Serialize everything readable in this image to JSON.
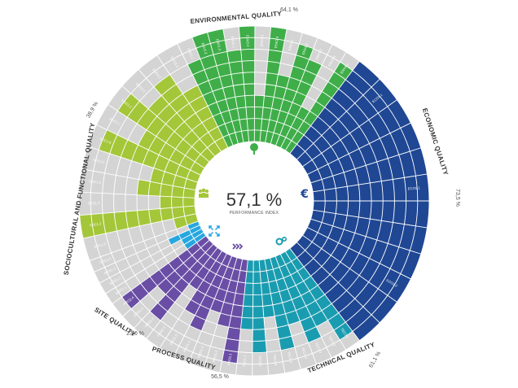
{
  "chart_data": {
    "type": "radial-bar",
    "center": {
      "value": "57,1 %",
      "caption": "PERFORMANCE INDEX"
    },
    "levels": 10,
    "categories": [
      {
        "name": "ENVIRONMENTAL QUALITY",
        "percent": "64,1 %",
        "color": "#3fae49",
        "icon": "tree-icon",
        "sectors": [
          {
            "label": "ENV1.1",
            "value": 8
          },
          {
            "label": "ENV1.2",
            "value": 10
          },
          {
            "label": "ENV1.3",
            "value": 10
          },
          {
            "label": "ENV2.1",
            "value": 8
          },
          {
            "label": "ENV2.2",
            "value": 10
          },
          {
            "label": "ENV2.3",
            "value": 4
          },
          {
            "label": "ENV2.4",
            "value": 10
          },
          {
            "label": "ENV3.1",
            "value": 6
          },
          {
            "label": "ENV3.2",
            "value": 9
          },
          {
            "label": "ENV3.3",
            "value": 8
          },
          {
            "label": "ENV3.4",
            "value": 4
          },
          {
            "label": "ENV4.1",
            "value": 9
          }
        ]
      },
      {
        "name": "ECONOMIC QUALITY",
        "percent": "73,5 %",
        "color": "#1f4793",
        "icon": "euro-icon",
        "sectors": [
          {
            "label": "",
            "value": 10
          },
          {
            "label": "ECO1.1",
            "value": 10
          },
          {
            "label": "",
            "value": 10
          },
          {
            "label": "",
            "value": 10
          },
          {
            "label": "",
            "value": 10
          },
          {
            "label": "ECO2.1",
            "value": 10
          },
          {
            "label": "",
            "value": 10
          },
          {
            "label": "",
            "value": 10
          },
          {
            "label": "",
            "value": 10
          },
          {
            "label": "ECO2.2",
            "value": 10
          },
          {
            "label": "",
            "value": 10
          },
          {
            "label": "",
            "value": 10
          }
        ]
      },
      {
        "name": "TECHNICAL QUALITY",
        "percent": "61,1 %",
        "color": "#1a9cb0",
        "icon": "gears-icon",
        "sectors": [
          {
            "label": "TEC1.1",
            "value": 9
          },
          {
            "label": "TEC1.2",
            "value": 7
          },
          {
            "label": "TEC1.3",
            "value": 8
          },
          {
            "label": "TEC1.4",
            "value": 6
          },
          {
            "label": "TEC1.5",
            "value": 8
          },
          {
            "label": "TEC1.6",
            "value": 5
          },
          {
            "label": "TEC3.1",
            "value": 8
          },
          {
            "label": "TEC1.1",
            "value": 6
          }
        ]
      },
      {
        "name": "PROCESS QUALITY",
        "percent": "56,5 %",
        "color": "#6a4ea5",
        "icon": "arrows-icon",
        "sectors": [
          {
            "label": "PRO1.1",
            "value": 9
          },
          {
            "label": "PRO1.2",
            "value": 6
          },
          {
            "label": "PRO1.3",
            "value": 5
          },
          {
            "label": "PRO1.4",
            "value": 7
          },
          {
            "label": "PRO1.5",
            "value": 6
          },
          {
            "label": "PRO2.1",
            "value": 4
          },
          {
            "label": "PRO2.2",
            "value": 8
          },
          {
            "label": "PRO2.3",
            "value": 6
          },
          {
            "label": "PRO2.4",
            "value": 9
          }
        ]
      },
      {
        "name": "SITE QUALITY",
        "percent": "23,0 %",
        "color": "#26a7e0",
        "icon": "compass-icon",
        "sectors": [
          {
            "label": "SITE1.1",
            "value": 2
          },
          {
            "label": "SITE1.2",
            "value": 2
          },
          {
            "label": "SITE1.3",
            "value": 3
          },
          {
            "label": "SITE1.4",
            "value": 1
          }
        ]
      },
      {
        "name": "SOCIOCULTURAL AND FUNCTIONAL QUALITY",
        "percent": "38,9 %",
        "color": "#a4c639",
        "icon": "people-icon",
        "sectors": [
          {
            "label": "SOC1.1",
            "value": 2
          },
          {
            "label": "SOC1.2",
            "value": 10
          },
          {
            "label": "SOC1.3",
            "value": 3
          },
          {
            "label": "SOC1.4",
            "value": 5
          },
          {
            "label": "SOC1.5",
            "value": 4
          },
          {
            "label": "SOC1.6",
            "value": 9
          },
          {
            "label": "SOC1.7",
            "value": 6
          },
          {
            "label": "SOC2.1",
            "value": 9
          },
          {
            "label": "SOC3.1",
            "value": 7
          },
          {
            "label": "SOC3.2",
            "value": 8
          },
          {
            "label": "SOC3.3",
            "value": 6
          }
        ]
      }
    ]
  }
}
